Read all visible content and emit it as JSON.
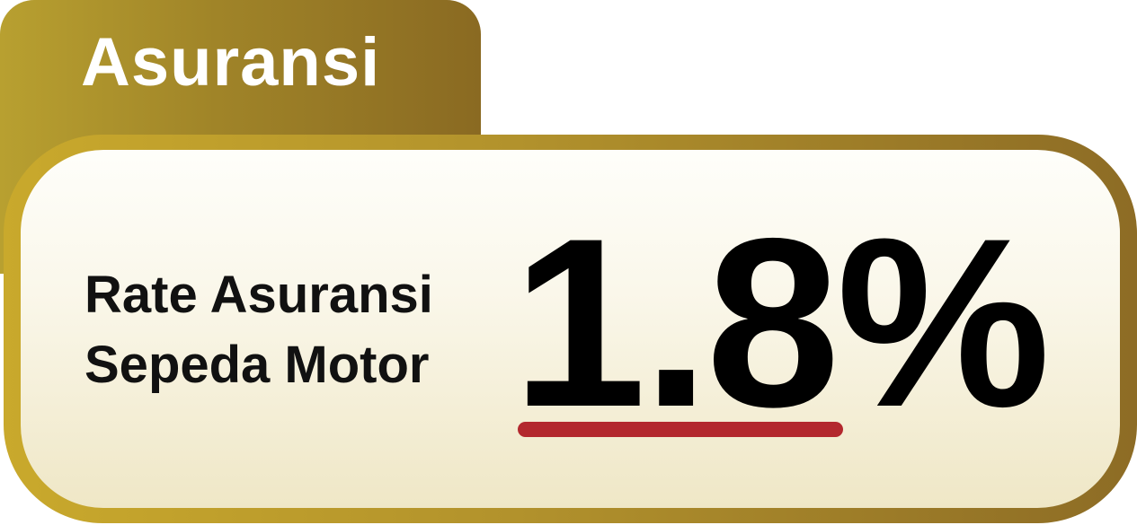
{
  "badge": {
    "tab_label": "Asuransi",
    "label_line_1": "Rate Asuransi",
    "label_line_2": "Sepeda Motor",
    "rate_value": "1.8%"
  },
  "colors": {
    "gold_light": "#c9a92c",
    "gold_dark": "#8a6a22",
    "underline_red": "#b3282e",
    "text_dark": "#111111",
    "tab_text": "#ffffff",
    "card_fill_top": "#fefefa",
    "card_fill_bottom": "#efe7c6"
  }
}
